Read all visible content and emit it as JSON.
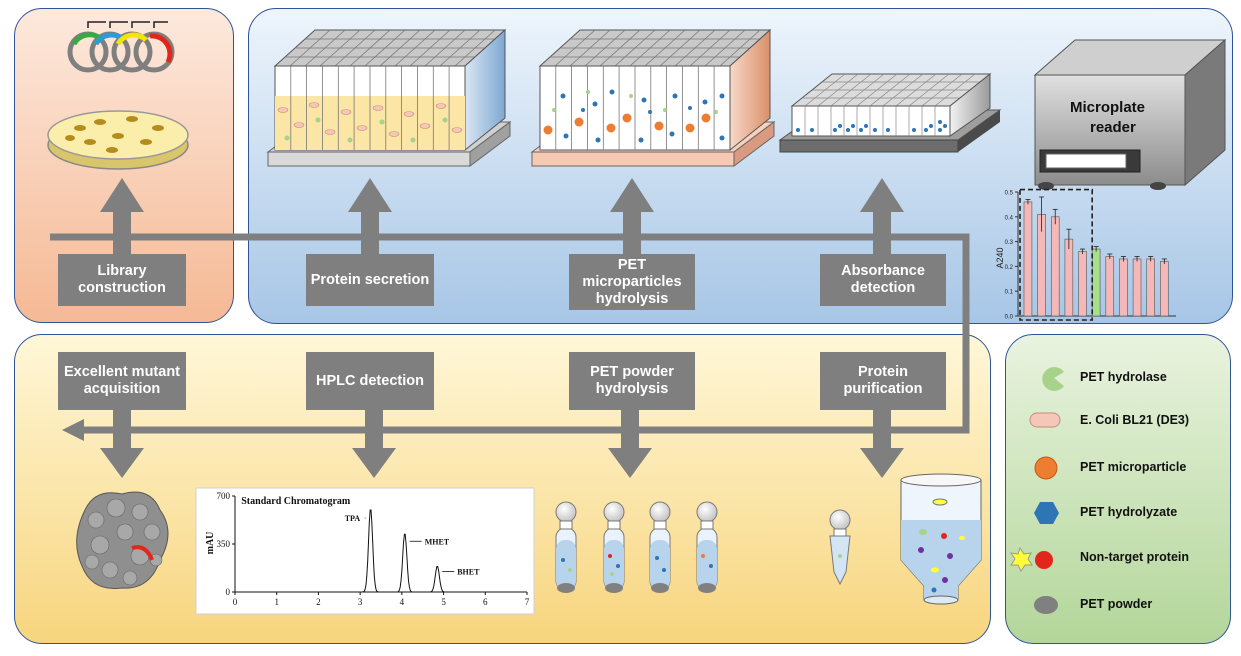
{
  "steps": {
    "library": "Library construction",
    "secretion": "Protein secretion",
    "microparticles": "PET microparticles hydrolysis",
    "absorbance": "Absorbance detection",
    "mutant": "Excellent mutant acquisition",
    "hplc": "HPLC detection",
    "powder": "PET powder hydrolysis",
    "purification": "Protein purification"
  },
  "device": {
    "name": "Microplate reader"
  },
  "absorbance_chart": {
    "ylabel": "A240",
    "yticks": [
      "0.5",
      "0.4",
      "0.3",
      "0.2",
      "0.1",
      "0.0"
    ],
    "values": [
      0.46,
      0.41,
      0.4,
      0.31,
      0.26,
      0.27,
      0.24,
      0.23,
      0.23,
      0.23,
      0.22
    ],
    "colors": [
      "#f4b8b8",
      "#f4b8b8",
      "#f4b8b8",
      "#f4b8b8",
      "#f4b8b8",
      "#a8e08a",
      "#f4b8b8",
      "#f4b8b8",
      "#f4b8b8",
      "#f4b8b8",
      "#f4b8b8"
    ]
  },
  "chromatogram": {
    "title": "Standard Chromatogram",
    "ylabel": "mAU",
    "yticks": [
      "700",
      "350",
      "0"
    ],
    "xticks": [
      "0",
      "1",
      "2",
      "3",
      "4",
      "5",
      "6",
      "7"
    ],
    "peaks": [
      {
        "label": "TPA",
        "x": 3.25,
        "y": 610
      },
      {
        "label": "MHET",
        "x": 4.07,
        "y": 430
      },
      {
        "label": "BHET",
        "x": 4.85,
        "y": 190
      }
    ]
  },
  "legend": [
    {
      "label": "PET hydrolase",
      "icon": "pacman-icon",
      "color": "#a6d28a"
    },
    {
      "label": "E. Coli BL21 (DE3)",
      "icon": "capsule-icon",
      "color": "#f4c7b8"
    },
    {
      "label": "PET microparticle",
      "icon": "orange-circle-icon",
      "color": "#ed7d31"
    },
    {
      "label": "PET hydrolyzate",
      "icon": "hexagon-icon",
      "color": "#2e75b6"
    },
    {
      "label": "Non-target protein",
      "icon": "star-blob-icon",
      "color": "#ffff33"
    },
    {
      "label": "PET powder",
      "icon": "gray-ellipse-icon",
      "color": "#808080"
    }
  ]
}
